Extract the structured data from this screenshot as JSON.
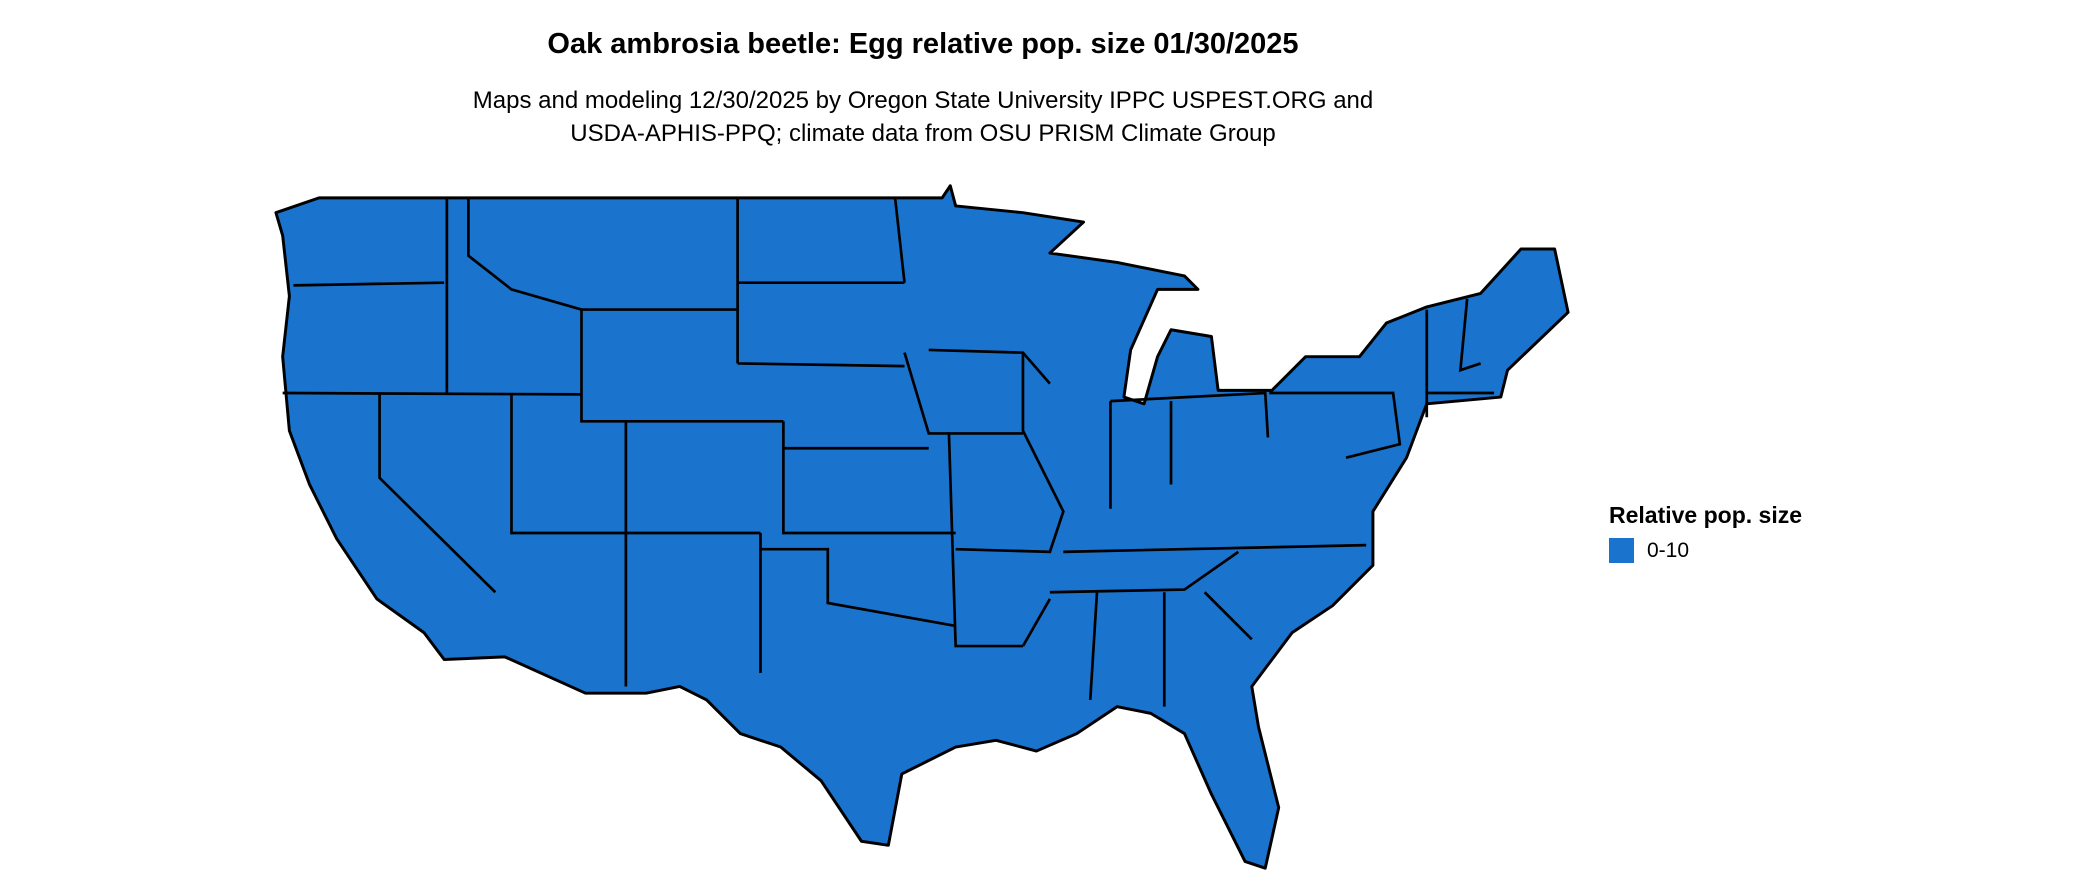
{
  "title": "Oak ambrosia beetle: Egg relative pop. size 01/30/2025",
  "subtitle_line1": "Maps and modeling 12/30/2025 by Oregon State University IPPC USPEST.ORG and",
  "subtitle_line2": "USDA-APHIS-PPQ; climate data from OSU PRISM Climate Group",
  "map": {
    "region": "Contiguous United States",
    "fill_color": "#1a73cc",
    "border_color": "#000000"
  },
  "legend": {
    "title": "Relative pop. size",
    "items": [
      {
        "label": "0-10",
        "color": "#1a73cc"
      }
    ]
  }
}
